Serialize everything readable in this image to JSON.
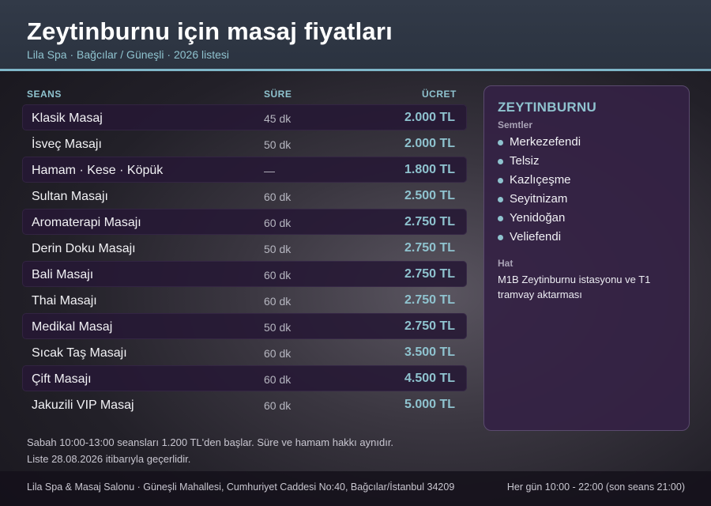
{
  "header": {
    "title": "Zeytinburnu için masaj fiyatları",
    "subtitle": "Lila Spa · Bağcılar / Güneşli · 2026 listesi"
  },
  "table": {
    "columns": {
      "session": "SEANS",
      "duration": "SÜRE",
      "price": "ÜCRET"
    },
    "rows": [
      {
        "name": "Klasik Masaj",
        "duration": "45 dk",
        "price": "2.000 TL"
      },
      {
        "name": "İsveç Masajı",
        "duration": "50 dk",
        "price": "2.000 TL"
      },
      {
        "name": "Hamam · Kese · Köpük",
        "duration": "—",
        "price": "1.800 TL"
      },
      {
        "name": "Sultan Masajı",
        "duration": "60 dk",
        "price": "2.500 TL"
      },
      {
        "name": "Aromaterapi Masajı",
        "duration": "60 dk",
        "price": "2.750 TL"
      },
      {
        "name": "Derin Doku Masajı",
        "duration": "50 dk",
        "price": "2.750 TL"
      },
      {
        "name": "Bali Masajı",
        "duration": "60 dk",
        "price": "2.750 TL"
      },
      {
        "name": "Thai Masajı",
        "duration": "60 dk",
        "price": "2.750 TL"
      },
      {
        "name": "Medikal Masaj",
        "duration": "50 dk",
        "price": "2.750 TL"
      },
      {
        "name": "Sıcak Taş Masajı",
        "duration": "60 dk",
        "price": "3.500 TL"
      },
      {
        "name": "Çift Masajı",
        "duration": "60 dk",
        "price": "4.500 TL"
      },
      {
        "name": "Jakuzili VIP Masaj",
        "duration": "60 dk",
        "price": "5.000 TL"
      }
    ]
  },
  "panel": {
    "title": "ZEYTINBURNU",
    "districts_label": "Semtler",
    "districts": [
      "Merkezefendi",
      "Telsiz",
      "Kazlıçeşme",
      "Seyitnizam",
      "Yenidoğan",
      "Veliefendi"
    ],
    "transit_label": "Hat",
    "transit_text": "M1B Zeytinburnu istasyonu ve T1 tramvay aktarması"
  },
  "notes": {
    "line1": "Sabah 10:00-13:00 seansları 1.200 TL'den başlar. Süre ve hamam hakkı aynıdır.",
    "line2": "Liste 28.08.2026 itibarıyla geçerlidir."
  },
  "footer": {
    "address": "Lila Spa & Masaj Salonu · Güneşli Mahallesi, Cumhuriyet Caddesi No:40, Bağcılar/İstanbul 34209",
    "hours": "Her gün 10:00 - 22:00 (son seans 21:00)"
  },
  "colors": {
    "accent": "#8fc3cf",
    "header_bg": "#2e3644",
    "row_shade": "#261834",
    "panel_bg": "#342244"
  }
}
